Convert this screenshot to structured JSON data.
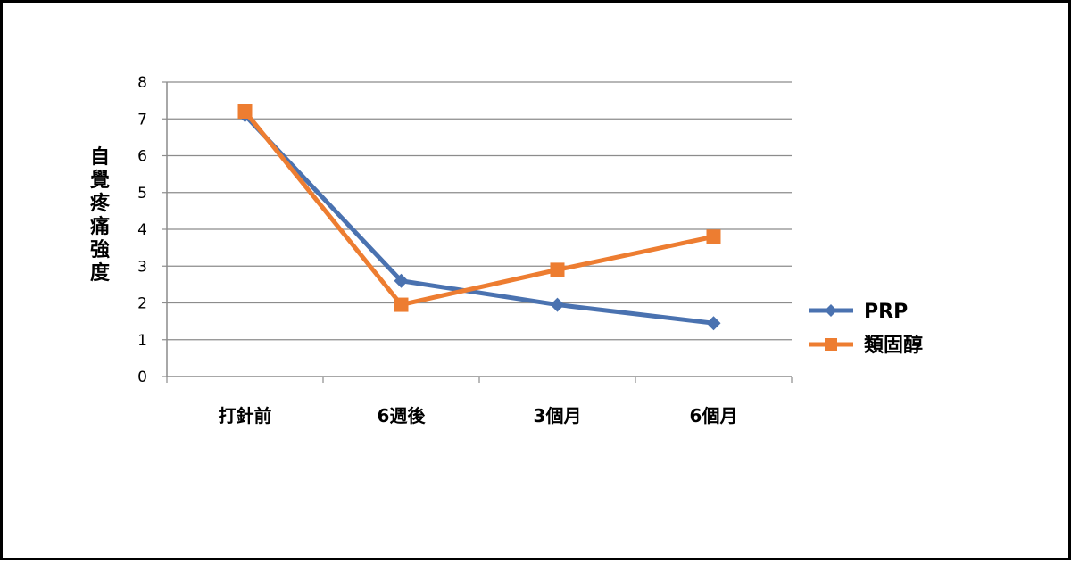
{
  "chart_data": {
    "type": "line",
    "categories": [
      "打針前",
      "6週後",
      "3個月",
      "6個月"
    ],
    "series": [
      {
        "name": "PRP",
        "values": [
          7.1,
          2.6,
          1.95,
          1.45
        ],
        "color": "#4a72b0",
        "marker": "diamond"
      },
      {
        "name": "類固醇",
        "values": [
          7.2,
          1.95,
          2.9,
          3.8
        ],
        "color": "#ed7d31",
        "marker": "square"
      }
    ],
    "title": "",
    "xlabel": "",
    "ylabel": "自覺疼痛強度",
    "ylim": [
      0,
      8
    ],
    "yticks": [
      0,
      1,
      2,
      3,
      4,
      5,
      6,
      7,
      8
    ],
    "grid": true,
    "legend_position": "right"
  }
}
